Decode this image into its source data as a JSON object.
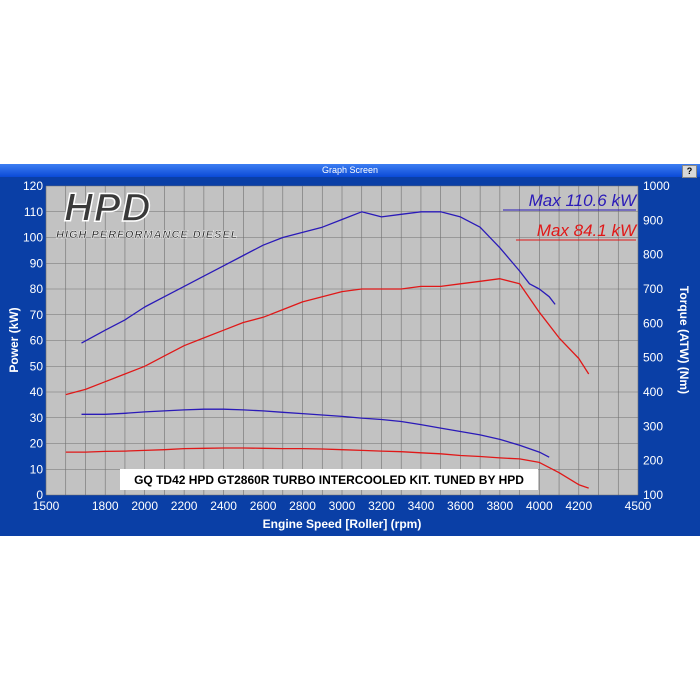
{
  "window": {
    "title": "Graph Screen",
    "help_button": "?"
  },
  "logo": {
    "main": "HPD",
    "sub": "HIGH PERFORMANCE DIESEL"
  },
  "max_labels": {
    "blue": "Max 110.6 kW",
    "red": "Max 84.1 kW"
  },
  "caption": "GQ TD42 HPD GT2860R TURBO INTERCOOLED KIT. TUNED BY HPD",
  "colors": {
    "plot_bg": "#c2c2c2",
    "frame": "#0a3fa6",
    "blue": "#2a1ab8",
    "red": "#e01818",
    "grid": "#707070"
  },
  "chart_data": {
    "type": "line",
    "xlabel": "Engine Speed [Roller] (rpm)",
    "ylabel": "Power (kW)",
    "y2label": "Torque (ATW) (Nm)",
    "xlim": [
      1500,
      4500
    ],
    "ylim": [
      0,
      120
    ],
    "y2lim": [
      100,
      1000
    ],
    "grid": true,
    "x_ticks": [
      "1500",
      "1800",
      "2000",
      "2200",
      "2400",
      "2600",
      "2800",
      "3000",
      "3200",
      "3400",
      "3600",
      "3800",
      "4000",
      "4200",
      "4500"
    ],
    "y_ticks": [
      "0",
      "10",
      "20",
      "30",
      "40",
      "50",
      "60",
      "70",
      "80",
      "90",
      "100",
      "110",
      "120"
    ],
    "y2_ticks": [
      "100",
      "200",
      "300",
      "400",
      "500",
      "600",
      "700",
      "800",
      "900",
      "1000"
    ],
    "series": [
      {
        "kind": "power",
        "axis": "left",
        "color": "#2a1ab8",
        "x": [
          1680,
          1800,
          1900,
          2000,
          2100,
          2200,
          2300,
          2400,
          2500,
          2600,
          2700,
          2800,
          2900,
          3000,
          3100,
          3200,
          3300,
          3400,
          3500,
          3600,
          3700,
          3800,
          3900,
          3950,
          4000,
          4050,
          4080
        ],
        "y": [
          59,
          64,
          68,
          73,
          77,
          81,
          85,
          89,
          93,
          97,
          100,
          102,
          104,
          107,
          110,
          108,
          109,
          110,
          110,
          108,
          104,
          96,
          87,
          82,
          80,
          77,
          74
        ]
      },
      {
        "kind": "power",
        "axis": "left",
        "color": "#e01818",
        "x": [
          1600,
          1700,
          1800,
          1900,
          2000,
          2100,
          2200,
          2300,
          2400,
          2500,
          2600,
          2700,
          2800,
          2900,
          3000,
          3100,
          3200,
          3300,
          3400,
          3500,
          3600,
          3700,
          3800,
          3900,
          4000,
          4100,
          4200,
          4250
        ],
        "y": [
          39,
          41,
          44,
          47,
          50,
          54,
          58,
          61,
          64,
          67,
          69,
          72,
          75,
          77,
          79,
          80,
          80,
          80,
          81,
          81,
          82,
          83,
          84,
          82,
          71,
          61,
          53,
          47
        ]
      },
      {
        "kind": "torque",
        "axis": "right",
        "color": "#2a1ab8",
        "x": [
          1680,
          1800,
          1900,
          2000,
          2100,
          2200,
          2300,
          2400,
          2500,
          2600,
          2700,
          2800,
          2900,
          3000,
          3100,
          3200,
          3300,
          3400,
          3500,
          3600,
          3700,
          3800,
          3900,
          4000,
          4050
        ],
        "y": [
          335,
          335,
          338,
          342,
          345,
          348,
          350,
          350,
          348,
          345,
          341,
          337,
          333,
          329,
          324,
          320,
          314,
          305,
          295,
          285,
          275,
          262,
          245,
          225,
          210
        ]
      },
      {
        "kind": "torque",
        "axis": "right",
        "color": "#e01818",
        "x": [
          1600,
          1700,
          1800,
          1900,
          2000,
          2100,
          2200,
          2300,
          2400,
          2500,
          2600,
          2700,
          2800,
          2900,
          3000,
          3100,
          3200,
          3300,
          3400,
          3500,
          3600,
          3700,
          3800,
          3900,
          4000,
          4100,
          4200,
          4250
        ],
        "y": [
          225,
          225,
          227,
          228,
          230,
          232,
          235,
          236,
          237,
          237,
          236,
          235,
          235,
          234,
          232,
          230,
          228,
          226,
          223,
          220,
          215,
          212,
          208,
          205,
          195,
          165,
          130,
          120
        ]
      }
    ]
  }
}
